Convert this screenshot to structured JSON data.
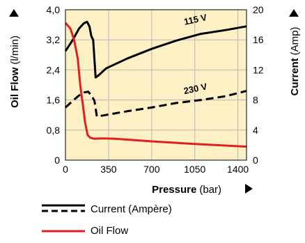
{
  "chart_data": {
    "type": "line",
    "title": "",
    "xlabel": {
      "bold": "Pressure",
      "unit": "(bar)"
    },
    "ylabel_left": {
      "bold": "Oil Flow",
      "unit": "(l/min)"
    },
    "ylabel_right": {
      "bold": "Current",
      "unit": "(Amp)"
    },
    "x_ticks": [
      "0",
      "350",
      "700",
      "1050",
      "1400"
    ],
    "y_left_ticks": [
      "0",
      "0,8",
      "1,6",
      "2,4",
      "3,2",
      "4,0"
    ],
    "y_right_ticks": [
      "0",
      "4",
      "8",
      "12",
      "16",
      "20"
    ],
    "xlim": [
      0,
      1470
    ],
    "ylim_left": [
      0,
      4.0
    ],
    "ylim_right": [
      0,
      20
    ],
    "grid": true,
    "background": "#fdf0c4",
    "series": [
      {
        "name": "115 V",
        "axis": "right",
        "style": "solid",
        "color": "#000000",
        "points": [
          [
            0,
            14.5
          ],
          [
            60,
            16.0
          ],
          [
            110,
            17.5
          ],
          [
            150,
            18.2
          ],
          [
            175,
            18.4
          ],
          [
            195,
            17.8
          ],
          [
            210,
            16.5
          ],
          [
            225,
            16.0
          ],
          [
            245,
            11.0
          ],
          [
            270,
            11.3
          ],
          [
            330,
            12.2
          ],
          [
            500,
            13.5
          ],
          [
            700,
            14.8
          ],
          [
            900,
            15.9
          ],
          [
            1100,
            16.8
          ],
          [
            1300,
            17.3
          ],
          [
            1470,
            17.8
          ]
        ]
      },
      {
        "name": "230 V",
        "axis": "right",
        "style": "dashed",
        "color": "#000000",
        "points": [
          [
            0,
            7.0
          ],
          [
            60,
            7.9
          ],
          [
            110,
            8.6
          ],
          [
            150,
            9.0
          ],
          [
            185,
            9.1
          ],
          [
            215,
            8.5
          ],
          [
            235,
            7.9
          ],
          [
            255,
            5.8
          ],
          [
            290,
            5.9
          ],
          [
            500,
            6.5
          ],
          [
            700,
            7.0
          ],
          [
            900,
            7.6
          ],
          [
            1100,
            8.0
          ],
          [
            1300,
            8.5
          ],
          [
            1470,
            9.2
          ]
        ]
      },
      {
        "name": "Oil Flow",
        "axis": "left",
        "style": "solid",
        "color": "#e02020",
        "points": [
          [
            0,
            3.65
          ],
          [
            40,
            3.5
          ],
          [
            70,
            3.2
          ],
          [
            100,
            2.7
          ],
          [
            120,
            2.0
          ],
          [
            140,
            1.5
          ],
          [
            160,
            1.0
          ],
          [
            180,
            0.67
          ],
          [
            200,
            0.6
          ],
          [
            230,
            0.57
          ],
          [
            300,
            0.58
          ],
          [
            400,
            0.57
          ],
          [
            700,
            0.5
          ],
          [
            1050,
            0.43
          ],
          [
            1470,
            0.36
          ]
        ]
      }
    ],
    "annotations": [
      {
        "text": "115 V",
        "x": 1060,
        "y_right": 18.3
      },
      {
        "text": "230 V",
        "x": 1060,
        "y_right": 9.1
      }
    ],
    "legend": {
      "placement": "bottom-left",
      "items": [
        {
          "label": "Current (Ampère)",
          "style": "solid-and-dashed",
          "color": "#000000"
        },
        {
          "label": "Oil Flow",
          "style": "solid",
          "color": "#e02020"
        }
      ]
    }
  }
}
